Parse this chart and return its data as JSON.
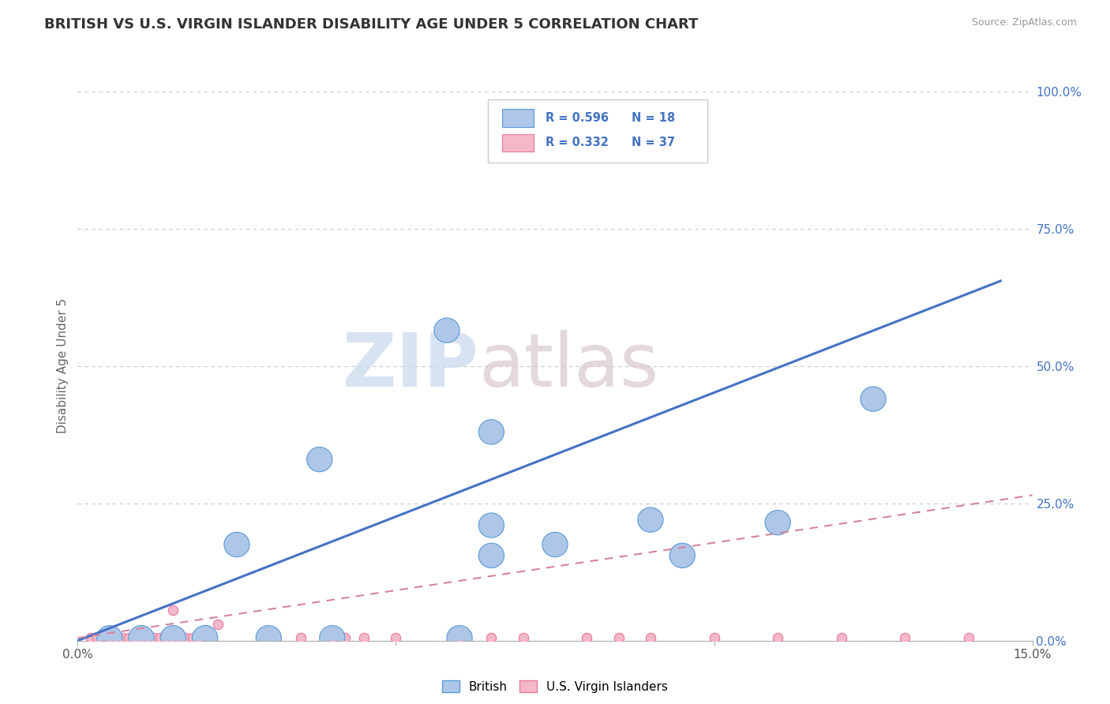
{
  "title": "BRITISH VS U.S. VIRGIN ISLANDER DISABILITY AGE UNDER 5 CORRELATION CHART",
  "source": "Source: ZipAtlas.com",
  "ylabel": "Disability Age Under 5",
  "xlim": [
    0.0,
    0.15
  ],
  "ylim": [
    0.0,
    1.0
  ],
  "ytick_labels_right": [
    "0.0%",
    "25.0%",
    "50.0%",
    "75.0%",
    "100.0%"
  ],
  "ytick_positions_right": [
    0.0,
    0.25,
    0.5,
    0.75,
    1.0
  ],
  "legend_r1": "R = 0.596",
  "legend_n1": "N = 18",
  "legend_r2": "R = 0.332",
  "legend_n2": "N = 37",
  "british_color": "#aec6e8",
  "british_edge": "#5b9bd5",
  "vi_color": "#f4b8c8",
  "vi_edge": "#e8799a",
  "line_british_color": "#4472c4",
  "line_vi_color": "#d4849a",
  "background_color": "#ffffff",
  "grid_color": "#c8c8c8",
  "watermark_zip": "ZIP",
  "watermark_atlas": "atlas",
  "british_points": [
    [
      0.005,
      0.005
    ],
    [
      0.01,
      0.005
    ],
    [
      0.015,
      0.005
    ],
    [
      0.02,
      0.005
    ],
    [
      0.03,
      0.005
    ],
    [
      0.04,
      0.005
    ],
    [
      0.06,
      0.005
    ],
    [
      0.025,
      0.175
    ],
    [
      0.038,
      0.33
    ],
    [
      0.058,
      0.565
    ],
    [
      0.065,
      0.38
    ],
    [
      0.065,
      0.21
    ],
    [
      0.075,
      0.175
    ],
    [
      0.09,
      0.22
    ],
    [
      0.095,
      0.155
    ],
    [
      0.11,
      0.215
    ],
    [
      0.125,
      0.44
    ],
    [
      0.065,
      0.155
    ]
  ],
  "vi_points": [
    [
      0.002,
      0.005
    ],
    [
      0.003,
      0.005
    ],
    [
      0.004,
      0.01
    ],
    [
      0.005,
      0.005
    ],
    [
      0.006,
      0.005
    ],
    [
      0.007,
      0.005
    ],
    [
      0.008,
      0.005
    ],
    [
      0.009,
      0.005
    ],
    [
      0.01,
      0.005
    ],
    [
      0.011,
      0.005
    ],
    [
      0.012,
      0.005
    ],
    [
      0.013,
      0.005
    ],
    [
      0.014,
      0.005
    ],
    [
      0.015,
      0.005
    ],
    [
      0.016,
      0.005
    ],
    [
      0.017,
      0.005
    ],
    [
      0.018,
      0.005
    ],
    [
      0.019,
      0.005
    ],
    [
      0.02,
      0.02
    ],
    [
      0.022,
      0.03
    ],
    [
      0.015,
      0.055
    ],
    [
      0.035,
      0.005
    ],
    [
      0.04,
      0.005
    ],
    [
      0.042,
      0.005
    ],
    [
      0.045,
      0.005
    ],
    [
      0.05,
      0.005
    ],
    [
      0.06,
      0.005
    ],
    [
      0.065,
      0.005
    ],
    [
      0.07,
      0.005
    ],
    [
      0.08,
      0.005
    ],
    [
      0.085,
      0.005
    ],
    [
      0.09,
      0.005
    ],
    [
      0.1,
      0.005
    ],
    [
      0.11,
      0.005
    ],
    [
      0.12,
      0.005
    ],
    [
      0.13,
      0.005
    ],
    [
      0.14,
      0.005
    ]
  ],
  "british_line_x": [
    0.0,
    0.145
  ],
  "british_line_y": [
    0.0,
    0.655
  ],
  "vi_line_x": [
    0.0,
    0.15
  ],
  "vi_line_y": [
    0.005,
    0.265
  ]
}
